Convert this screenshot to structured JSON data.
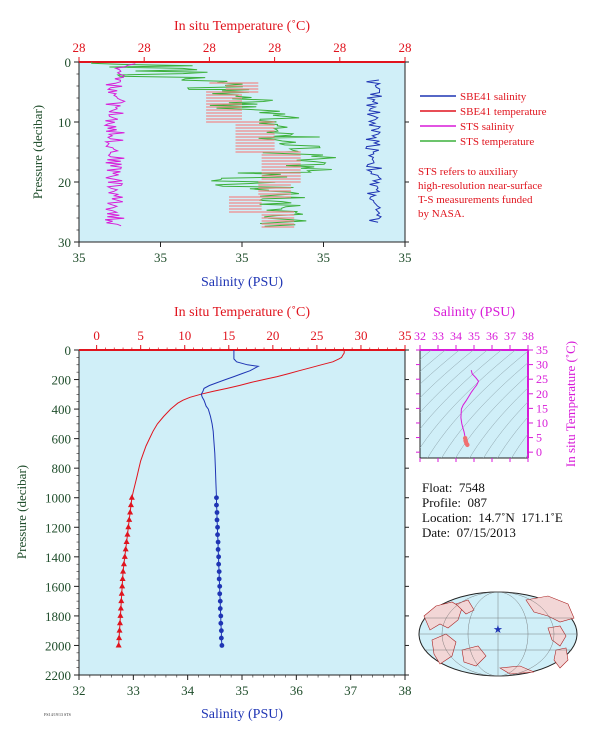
{
  "colors": {
    "red": "#e0141e",
    "blue": "#1f35b4",
    "magenta": "#d81ad8",
    "green": "#3bb03b",
    "pink": "#f08a8a",
    "panel": "#d0eff8",
    "dark_green": "#1f4d2b",
    "land": "#f2d6d6",
    "ocean": "#d0eff8"
  },
  "top_panel": {
    "title": "In situ Temperature (˚C)",
    "x_label": "Salinity (PSU)",
    "y_label": "Pressure (decibar)",
    "temp_ticks": [
      "28",
      "28",
      "28",
      "28",
      "28",
      "28"
    ],
    "sal_ticks": [
      "35",
      "35",
      "35",
      "35",
      "35"
    ],
    "p_ticks": [
      "0",
      "10",
      "20",
      "30"
    ],
    "legend": [
      {
        "label": "SBE41 salinity",
        "color": "#1f35b4"
      },
      {
        "label": "SBE41 temperature",
        "color": "#e0141e"
      },
      {
        "label": "STS salinity",
        "color": "#d81ad8"
      },
      {
        "label": "STS temperature",
        "color": "#3bb03b"
      }
    ],
    "note": [
      "STS refers to auxiliary",
      "high-resolution near-surface",
      "T-S measurements funded",
      "by NASA."
    ]
  },
  "main_panel": {
    "title": "In situ Temperature (˚C)",
    "x_label": "Salinity (PSU)",
    "y_label": "Pressure (decibar)",
    "temp_ticks": [
      "0",
      "5",
      "10",
      "15",
      "20",
      "25",
      "30",
      "35"
    ],
    "sal_ticks": [
      "32",
      "33",
      "34",
      "35",
      "36",
      "37",
      "38"
    ],
    "p_ticks": [
      "0",
      "200",
      "400",
      "600",
      "800",
      "1000",
      "1200",
      "1400",
      "1600",
      "1800",
      "2000",
      "2200"
    ]
  },
  "ts_panel": {
    "title": "Salinity (PSU)",
    "y_label": "In situ Temperature (˚C)",
    "sal_ticks": [
      "32",
      "33",
      "34",
      "35",
      "36",
      "37",
      "38"
    ],
    "temp_ticks": [
      "0",
      "5",
      "10",
      "15",
      "20",
      "25",
      "30",
      "35"
    ]
  },
  "float_info": [
    "Float:  7548",
    "Profile:  087",
    "Location:  14.7˚N  171.1˚E",
    "Date:  07/15/2013"
  ],
  "footnote": "FSI 4/19/13 STS",
  "chart_data": [
    {
      "type": "line",
      "title": "",
      "x_axis_top": {
        "label": "In situ Temperature (˚C)",
        "ticks": [
          "28",
          "28",
          "28",
          "28",
          "28",
          "28"
        ]
      },
      "x_axis_bottom": {
        "label": "Salinity (PSU)",
        "ticks": [
          "35",
          "35",
          "35",
          "35",
          "35"
        ]
      },
      "y_axis": {
        "label": "Pressure (decibar)",
        "range": [
          0,
          30
        ],
        "inverted": true,
        "ticks": [
          0,
          10,
          20,
          30
        ]
      },
      "grid": false,
      "legend": "right",
      "series": [
        {
          "name": "SBE41 salinity",
          "note": "near-constant salinity, profile near x=0.93 of axis, pressure 3-27 dbar"
        },
        {
          "name": "SBE41 temperature",
          "note": "stepped profile between axis fraction 0.39 and 0.73"
        },
        {
          "name": "STS salinity",
          "note": "noisy profile near axis fraction 0.1-0.2 from 0 to 27 dbar"
        },
        {
          "name": "STS temperature",
          "note": "stepped noisy profile between axis fraction 0 and 0.8"
        }
      ]
    },
    {
      "type": "line",
      "title": "",
      "x_axis_top": {
        "label": "In situ Temperature (˚C)",
        "range": [
          -2,
          35
        ]
      },
      "x_axis_bottom": {
        "label": "Salinity (PSU)",
        "range": [
          32,
          38
        ]
      },
      "y_axis": {
        "label": "Pressure (decibar)",
        "range": [
          0,
          2200
        ],
        "inverted": true
      },
      "grid": false,
      "series": [
        {
          "name": "Temperature",
          "pressure": [
            0,
            10,
            20,
            30,
            40,
            50,
            60,
            80,
            100,
            120,
            140,
            160,
            180,
            200,
            220,
            240,
            260,
            280,
            300,
            320,
            340,
            360,
            380,
            400,
            450,
            500,
            550,
            600,
            650,
            700,
            750,
            800,
            850,
            900,
            950,
            1000,
            1050,
            1100,
            1150,
            1200,
            1250,
            1300,
            1350,
            1400,
            1450,
            1500,
            1550,
            1600,
            1650,
            1700,
            1750,
            1800,
            1850,
            1900,
            1950,
            2000
          ],
          "temperature": [
            28.1,
            28.1,
            28.1,
            28.0,
            27.9,
            27.8,
            27.5,
            26.8,
            25.5,
            24.3,
            23.0,
            21.8,
            20.5,
            19.0,
            17.5,
            16.2,
            14.8,
            13.2,
            11.8,
            10.6,
            9.8,
            9.2,
            8.8,
            8.4,
            7.6,
            6.9,
            6.4,
            6.0,
            5.6,
            5.3,
            5.0,
            4.8,
            4.6,
            4.4,
            4.2,
            4.0,
            3.9,
            3.8,
            3.7,
            3.6,
            3.5,
            3.4,
            3.3,
            3.2,
            3.1,
            3.0,
            2.95,
            2.9,
            2.85,
            2.8,
            2.75,
            2.7,
            2.65,
            2.6,
            2.55,
            2.5
          ]
        },
        {
          "name": "Salinity",
          "pressure": [
            0,
            20,
            40,
            60,
            80,
            100,
            110,
            120,
            140,
            160,
            180,
            200,
            220,
            240,
            260,
            280,
            300,
            320,
            340,
            360,
            380,
            400,
            450,
            500,
            550,
            600,
            700,
            800,
            900,
            1000,
            1050,
            1100,
            1150,
            1200,
            1250,
            1300,
            1350,
            1400,
            1450,
            1500,
            1550,
            1600,
            1650,
            1700,
            1750,
            1800,
            1850,
            1900,
            1950,
            2000
          ],
          "salinity": [
            34.85,
            34.85,
            34.85,
            34.85,
            34.9,
            35.1,
            35.3,
            35.25,
            35.15,
            35.0,
            34.85,
            34.7,
            34.55,
            34.4,
            34.3,
            34.28,
            34.25,
            34.27,
            34.3,
            34.32,
            34.34,
            34.38,
            34.42,
            34.45,
            34.47,
            34.48,
            34.5,
            34.51,
            34.52,
            34.53,
            34.53,
            34.54,
            34.54,
            34.55,
            34.55,
            34.56,
            34.56,
            34.57,
            34.57,
            34.58,
            34.58,
            34.59,
            34.59,
            34.6,
            34.6,
            34.61,
            34.61,
            34.62,
            34.62,
            34.63
          ]
        }
      ]
    },
    {
      "type": "line",
      "title": "",
      "x_axis_top": {
        "label": "Salinity (PSU)",
        "range": [
          32,
          38
        ]
      },
      "y_axis_right": {
        "label": "In situ Temperature (˚C)",
        "range": [
          -2,
          35
        ]
      },
      "grid": false,
      "series": [
        {
          "name": "T-S",
          "salinity": [
            34.85,
            34.85,
            34.9,
            35.1,
            35.25,
            35.15,
            35.0,
            34.85,
            34.7,
            34.55,
            34.4,
            34.3,
            34.27,
            34.32,
            34.38,
            34.45,
            34.48,
            34.51,
            34.53,
            34.55,
            34.58,
            34.63
          ],
          "temperature": [
            28.1,
            28.0,
            26.8,
            25.5,
            24.3,
            23.0,
            21.8,
            20.5,
            19.0,
            17.5,
            16.2,
            14.8,
            11.8,
            9.8,
            8.4,
            6.9,
            6.0,
            4.8,
            4.0,
            3.6,
            3.0,
            2.5
          ]
        }
      ]
    }
  ]
}
